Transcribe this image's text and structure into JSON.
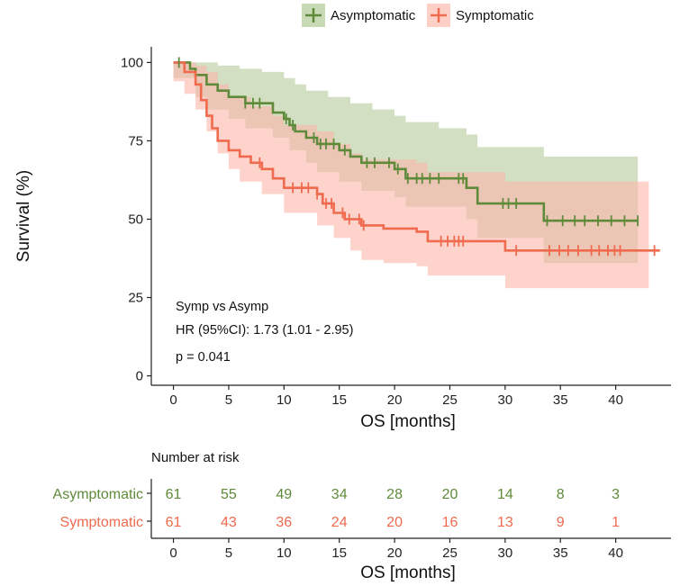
{
  "chart_data": {
    "type": "line",
    "subtype": "kaplan-meier",
    "xlabel": "OS [months]",
    "ylabel": "Survival (%)",
    "xlim": [
      -2,
      45
    ],
    "ylim": [
      -3,
      105
    ],
    "x_ticks": [
      0,
      5,
      10,
      15,
      20,
      25,
      30,
      35,
      40
    ],
    "y_ticks": [
      0,
      25,
      50,
      75,
      100
    ],
    "grid": false,
    "legend_position": "top",
    "annotations": {
      "comparison": "Symp vs Asymp",
      "hr": "HR (95%CI): 1.73 (1.01 - 2.95)",
      "p": "p = 0.041"
    },
    "series": [
      {
        "name": "Asymptomatic",
        "color": "#5f8a3a",
        "band_color": "#b4c99a",
        "steps": [
          [
            0,
            100
          ],
          [
            0.5,
            100
          ],
          [
            1.5,
            98
          ],
          [
            2,
            96
          ],
          [
            3,
            93
          ],
          [
            4,
            91
          ],
          [
            5,
            89
          ],
          [
            6.5,
            87
          ],
          [
            7.5,
            87
          ],
          [
            9,
            84
          ],
          [
            10,
            82
          ],
          [
            10.5,
            80
          ],
          [
            11,
            78
          ],
          [
            12,
            76
          ],
          [
            13,
            74
          ],
          [
            15,
            72
          ],
          [
            16,
            70
          ],
          [
            17,
            68
          ],
          [
            20,
            66
          ],
          [
            21,
            63
          ],
          [
            24,
            63
          ],
          [
            25,
            63
          ],
          [
            26.5,
            60
          ],
          [
            27.5,
            55
          ],
          [
            33.5,
            49.5
          ],
          [
            42,
            49.5
          ]
        ],
        "ci_upper": [
          [
            0,
            100
          ],
          [
            2,
            100
          ],
          [
            4,
            99
          ],
          [
            6,
            98
          ],
          [
            8,
            97
          ],
          [
            10,
            95
          ],
          [
            11,
            93
          ],
          [
            12,
            91
          ],
          [
            14,
            89
          ],
          [
            16,
            87
          ],
          [
            18,
            85
          ],
          [
            20,
            83
          ],
          [
            21,
            81
          ],
          [
            24,
            79
          ],
          [
            26.5,
            77
          ],
          [
            27.5,
            73
          ],
          [
            33.5,
            70
          ],
          [
            42,
            70
          ]
        ],
        "ci_lower": [
          [
            0,
            95
          ],
          [
            2,
            89
          ],
          [
            3,
            85
          ],
          [
            5,
            82
          ],
          [
            6.5,
            79
          ],
          [
            9,
            76
          ],
          [
            10.5,
            72
          ],
          [
            12,
            68
          ],
          [
            13,
            65
          ],
          [
            15,
            62
          ],
          [
            17,
            59
          ],
          [
            20,
            57
          ],
          [
            21,
            54
          ],
          [
            26.5,
            50
          ],
          [
            27.5,
            44
          ],
          [
            33.5,
            36
          ],
          [
            42,
            36
          ]
        ],
        "censor_times": [
          0.5,
          6.5,
          7.2,
          7.8,
          10.2,
          10.8,
          12.7,
          13.3,
          13.8,
          14.5,
          15.5,
          17.5,
          18.2,
          19.5,
          20.3,
          21.2,
          22,
          22.5,
          23.2,
          24,
          25.8,
          26.2,
          29.8,
          30.3,
          31,
          33.8,
          35.2,
          36.3,
          37.2,
          38.4,
          39.6,
          40.8,
          42
        ]
      },
      {
        "name": "Symptomatic",
        "color": "#f06a4e",
        "band_color": "#fbb6aa",
        "steps": [
          [
            0,
            100
          ],
          [
            1,
            97
          ],
          [
            2,
            93
          ],
          [
            2.5,
            88
          ],
          [
            3,
            83
          ],
          [
            3.5,
            79
          ],
          [
            4,
            75
          ],
          [
            5,
            72
          ],
          [
            6,
            70
          ],
          [
            7,
            68
          ],
          [
            8,
            66
          ],
          [
            9,
            63
          ],
          [
            10,
            60
          ],
          [
            13,
            58
          ],
          [
            13.5,
            55
          ],
          [
            14.5,
            52
          ],
          [
            15.5,
            50
          ],
          [
            17,
            48
          ],
          [
            19,
            47
          ],
          [
            22,
            46
          ],
          [
            23,
            43
          ],
          [
            30,
            40
          ],
          [
            44,
            40
          ]
        ],
        "ci_upper": [
          [
            0,
            100
          ],
          [
            1,
            100
          ],
          [
            2,
            99
          ],
          [
            3,
            97
          ],
          [
            4,
            93
          ],
          [
            5,
            89
          ],
          [
            7,
            86
          ],
          [
            9,
            83
          ],
          [
            10,
            80
          ],
          [
            13,
            78
          ],
          [
            14.5,
            74
          ],
          [
            16,
            71
          ],
          [
            17,
            69
          ],
          [
            22,
            68
          ],
          [
            23,
            65
          ],
          [
            30,
            62
          ],
          [
            43,
            57
          ]
        ],
        "ci_lower": [
          [
            0,
            94
          ],
          [
            1,
            90
          ],
          [
            2,
            85
          ],
          [
            3,
            78
          ],
          [
            4,
            71
          ],
          [
            5,
            66
          ],
          [
            6,
            62
          ],
          [
            8,
            58
          ],
          [
            10,
            52
          ],
          [
            13,
            48
          ],
          [
            14.5,
            44
          ],
          [
            16,
            40
          ],
          [
            17,
            37
          ],
          [
            19,
            36
          ],
          [
            22,
            35
          ],
          [
            23,
            32
          ],
          [
            30,
            28
          ],
          [
            43,
            28
          ]
        ],
        "censor_times": [
          7.8,
          10.8,
          11.6,
          12.2,
          13,
          13.8,
          14.3,
          15.3,
          15.9,
          16.8,
          17.2,
          24.2,
          24.8,
          25.4,
          25.8,
          26.2,
          31,
          34,
          34.9,
          35.7,
          36.6,
          37.8,
          38.5,
          39.3,
          39.9,
          40.4,
          43.5
        ]
      }
    ],
    "risk_table": {
      "title": "Number at risk",
      "xlabel": "OS [months]",
      "times": [
        0,
        5,
        10,
        15,
        20,
        25,
        30,
        35,
        40
      ],
      "rows": [
        {
          "name": "Asymptomatic",
          "color": "#5f8a3a",
          "values": [
            61,
            55,
            49,
            34,
            28,
            20,
            14,
            8,
            3
          ]
        },
        {
          "name": "Symptomatic",
          "color": "#f06a4e",
          "values": [
            61,
            43,
            36,
            24,
            20,
            16,
            13,
            9,
            1
          ]
        }
      ]
    }
  }
}
